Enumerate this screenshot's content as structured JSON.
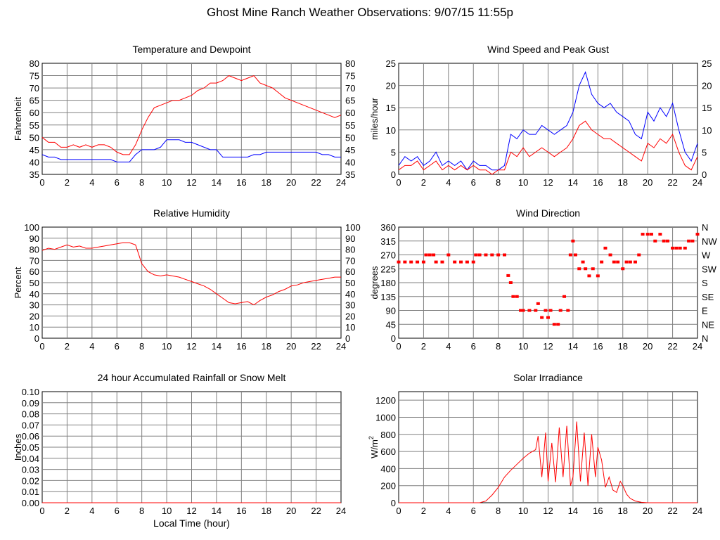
{
  "page": {
    "title": "Ghost Mine Ranch Weather Observations: 9/07/15 11:55p"
  },
  "chart_data": [
    {
      "id": "temp",
      "type": "line",
      "title": "Temperature and Dewpoint",
      "xlabel": "",
      "ylabel": "Fahrenheit",
      "xlim": [
        0,
        24
      ],
      "ylim": [
        35,
        80
      ],
      "x_ticks": [
        "0",
        "2",
        "4",
        "6",
        "8",
        "10",
        "12",
        "14",
        "16",
        "18",
        "20",
        "22",
        "24"
      ],
      "y_ticks": [
        "35",
        "40",
        "45",
        "50",
        "55",
        "60",
        "65",
        "70",
        "75",
        "80"
      ],
      "right_ticks": [
        "35",
        "40",
        "45",
        "50",
        "55",
        "60",
        "65",
        "70",
        "75",
        "80"
      ],
      "grid": true,
      "series": [
        {
          "color": "#ff0000",
          "x": [
            0,
            0.5,
            1,
            1.5,
            2,
            2.5,
            3,
            3.5,
            4,
            4.5,
            5,
            5.5,
            6,
            6.5,
            7,
            7.5,
            8,
            8.5,
            9,
            9.5,
            10,
            10.5,
            11,
            11.5,
            12,
            12.5,
            13,
            13.5,
            14,
            14.5,
            15,
            15.5,
            16,
            16.5,
            17,
            17.5,
            18,
            18.5,
            19,
            19.5,
            20,
            20.5,
            21,
            21.5,
            22,
            22.5,
            23,
            23.5,
            24
          ],
          "y": [
            50,
            48,
            48,
            46,
            46,
            47,
            46,
            47,
            46,
            47,
            47,
            46,
            44,
            43,
            43,
            47,
            53,
            58,
            62,
            63,
            64,
            65,
            65,
            66,
            67,
            69,
            70,
            72,
            72,
            73,
            75,
            74,
            73,
            74,
            75,
            72,
            71,
            70,
            68,
            66,
            65,
            64,
            63,
            62,
            61,
            60,
            59,
            58,
            59
          ]
        },
        {
          "color": "#0000ff",
          "x": [
            0,
            0.5,
            1,
            1.5,
            2,
            2.5,
            3,
            3.5,
            4,
            4.5,
            5,
            5.5,
            6,
            6.5,
            7,
            7.5,
            8,
            8.5,
            9,
            9.5,
            10,
            10.5,
            11,
            11.5,
            12,
            12.5,
            13,
            13.5,
            14,
            14.5,
            15,
            15.5,
            16,
            16.5,
            17,
            17.5,
            18,
            18.5,
            19,
            19.5,
            20,
            20.5,
            21,
            21.5,
            22,
            22.5,
            23,
            23.5,
            24
          ],
          "y": [
            43,
            42,
            42,
            41,
            41,
            41,
            41,
            41,
            41,
            41,
            41,
            41,
            40,
            40,
            40,
            43,
            45,
            45,
            45,
            46,
            49,
            49,
            49,
            48,
            48,
            47,
            46,
            45,
            45,
            42,
            42,
            42,
            42,
            42,
            43,
            43,
            44,
            44,
            44,
            44,
            44,
            44,
            44,
            44,
            44,
            43,
            43,
            42,
            42
          ]
        }
      ]
    },
    {
      "id": "wind",
      "type": "line",
      "title": "Wind Speed and Peak Gust",
      "xlabel": "",
      "ylabel": "miles/hour",
      "xlim": [
        0,
        24
      ],
      "ylim": [
        0,
        25
      ],
      "x_ticks": [
        "0",
        "2",
        "4",
        "6",
        "8",
        "10",
        "12",
        "14",
        "16",
        "18",
        "20",
        "22",
        "24"
      ],
      "y_ticks": [
        "0",
        "5",
        "10",
        "15",
        "20",
        "25"
      ],
      "right_ticks": [
        "0",
        "5",
        "10",
        "15",
        "20",
        "25"
      ],
      "grid": true,
      "series": [
        {
          "color": "#0000ff",
          "x": [
            0,
            0.5,
            1,
            1.5,
            2,
            2.5,
            3,
            3.5,
            4,
            4.5,
            5,
            5.5,
            6,
            6.5,
            7,
            7.5,
            8,
            8.5,
            9,
            9.5,
            10,
            10.5,
            11,
            11.5,
            12,
            12.5,
            13,
            13.5,
            14,
            14.5,
            15,
            15.5,
            16,
            16.5,
            17,
            17.5,
            18,
            18.5,
            19,
            19.5,
            20,
            20.5,
            21,
            21.5,
            22,
            22.5,
            23,
            23.5,
            24
          ],
          "y": [
            2,
            4,
            3,
            4,
            2,
            3,
            5,
            2,
            3,
            2,
            3,
            1,
            3,
            2,
            2,
            1,
            1,
            2,
            9,
            8,
            10,
            9,
            9,
            11,
            10,
            9,
            10,
            11,
            14,
            20,
            23,
            18,
            16,
            15,
            16,
            14,
            13,
            12,
            9,
            8,
            14,
            12,
            15,
            13,
            16,
            10,
            5,
            3,
            7
          ]
        },
        {
          "color": "#ff0000",
          "x": [
            0,
            0.5,
            1,
            1.5,
            2,
            2.5,
            3,
            3.5,
            4,
            4.5,
            5,
            5.5,
            6,
            6.5,
            7,
            7.5,
            8,
            8.5,
            9,
            9.5,
            10,
            10.5,
            11,
            11.5,
            12,
            12.5,
            13,
            13.5,
            14,
            14.5,
            15,
            15.5,
            16,
            16.5,
            17,
            17.5,
            18,
            18.5,
            19,
            19.5,
            20,
            20.5,
            21,
            21.5,
            22,
            22.5,
            23,
            23.5,
            24
          ],
          "y": [
            1,
            2,
            2,
            3,
            1,
            2,
            3,
            1,
            2,
            1,
            2,
            1,
            2,
            1,
            1,
            0,
            1,
            1,
            5,
            4,
            6,
            4,
            5,
            6,
            5,
            4,
            5,
            6,
            8,
            11,
            12,
            10,
            9,
            8,
            8,
            7,
            6,
            5,
            4,
            3,
            7,
            6,
            8,
            7,
            9,
            5,
            2,
            1,
            4
          ]
        }
      ]
    },
    {
      "id": "rh",
      "type": "line",
      "title": "Relative Humidity",
      "xlabel": "",
      "ylabel": "Percent",
      "xlim": [
        0,
        24
      ],
      "ylim": [
        0,
        100
      ],
      "x_ticks": [
        "0",
        "2",
        "4",
        "6",
        "8",
        "10",
        "12",
        "14",
        "16",
        "18",
        "20",
        "22",
        "24"
      ],
      "y_ticks": [
        "0",
        "10",
        "20",
        "30",
        "40",
        "50",
        "60",
        "70",
        "80",
        "90",
        "100"
      ],
      "right_ticks": [
        "0",
        "10",
        "20",
        "30",
        "40",
        "50",
        "60",
        "70",
        "80",
        "90",
        "100"
      ],
      "grid": true,
      "series": [
        {
          "color": "#ff0000",
          "x": [
            0,
            0.5,
            1,
            1.5,
            2,
            2.5,
            3,
            3.5,
            4,
            4.5,
            5,
            5.5,
            6,
            6.5,
            7,
            7.5,
            8,
            8.5,
            9,
            9.5,
            10,
            10.5,
            11,
            11.5,
            12,
            12.5,
            13,
            13.5,
            14,
            14.5,
            15,
            15.5,
            16,
            16.5,
            17,
            17.5,
            18,
            18.5,
            19,
            19.5,
            20,
            20.5,
            21,
            21.5,
            22,
            22.5,
            23,
            23.5,
            24
          ],
          "y": [
            79,
            81,
            80,
            82,
            84,
            82,
            83,
            81,
            81,
            82,
            83,
            84,
            85,
            86,
            86,
            84,
            67,
            60,
            57,
            56,
            57,
            56,
            55,
            53,
            51,
            49,
            47,
            44,
            40,
            36,
            32,
            31,
            32,
            33,
            30,
            34,
            37,
            39,
            42,
            44,
            47,
            48,
            50,
            51,
            52,
            53,
            54,
            55,
            55
          ]
        }
      ]
    },
    {
      "id": "winddir",
      "type": "scatter",
      "title": "Wind Direction",
      "xlabel": "",
      "ylabel": "degrees",
      "xlim": [
        0,
        24
      ],
      "ylim": [
        0,
        360
      ],
      "x_ticks": [
        "0",
        "2",
        "4",
        "6",
        "8",
        "10",
        "12",
        "14",
        "16",
        "18",
        "20",
        "22",
        "24"
      ],
      "y_ticks": [
        "0",
        "45",
        "90",
        "135",
        "180",
        "225",
        "270",
        "315",
        "360"
      ],
      "right_ticks": [
        "N",
        "NE",
        "E",
        "SE",
        "S",
        "SW",
        "W",
        "NW",
        "N"
      ],
      "grid": true,
      "series": [
        {
          "color": "#ff0000",
          "x": [
            0,
            0.5,
            1,
            1.5,
            2,
            2.2,
            2.5,
            2.8,
            3,
            3.5,
            4,
            4.5,
            5,
            5.5,
            6,
            6.2,
            6.5,
            7,
            7.5,
            8,
            8.5,
            8.8,
            9,
            9.2,
            9.5,
            9.8,
            10,
            10.5,
            11,
            11.2,
            11.5,
            11.8,
            12,
            12.2,
            12.5,
            12.8,
            13,
            13.3,
            13.6,
            13.8,
            14,
            14.2,
            14.5,
            14.8,
            15,
            15.3,
            15.6,
            16,
            16.3,
            16.6,
            17,
            17.3,
            17.6,
            18,
            18.3,
            18.6,
            19,
            19.3,
            19.6,
            20,
            20.3,
            20.6,
            21,
            21.3,
            21.6,
            22,
            22.3,
            22.6,
            23,
            23.3,
            23.6,
            24
          ],
          "y": [
            247,
            247,
            247,
            247,
            247,
            270,
            270,
            270,
            247,
            247,
            270,
            247,
            247,
            247,
            247,
            270,
            270,
            270,
            270,
            270,
            270,
            203,
            180,
            135,
            135,
            90,
            90,
            90,
            90,
            112,
            67,
            90,
            67,
            90,
            45,
            45,
            90,
            135,
            90,
            270,
            315,
            270,
            225,
            247,
            225,
            202,
            225,
            202,
            247,
            292,
            270,
            247,
            247,
            225,
            247,
            247,
            247,
            270,
            337,
            337,
            337,
            315,
            337,
            315,
            315,
            292,
            292,
            292,
            292,
            315,
            315,
            337
          ]
        }
      ]
    },
    {
      "id": "rain",
      "type": "line",
      "title": "24 hour Accumulated Rainfall or Snow Melt",
      "xlabel": "Local Time (hour)",
      "ylabel": "Inches",
      "xlim": [
        0,
        24
      ],
      "ylim": [
        0,
        0.1
      ],
      "x_ticks": [
        "0",
        "2",
        "4",
        "6",
        "8",
        "10",
        "12",
        "14",
        "16",
        "18",
        "20",
        "22",
        "24"
      ],
      "y_ticks": [
        "0.00",
        "0.01",
        "0.02",
        "0.03",
        "0.04",
        "0.05",
        "0.06",
        "0.07",
        "0.08",
        "0.09",
        "0.10"
      ],
      "right_ticks": [],
      "grid": true,
      "series": [
        {
          "color": "#ff0000",
          "x": [
            0,
            24
          ],
          "y": [
            0,
            0
          ]
        }
      ]
    },
    {
      "id": "solar",
      "type": "line",
      "title": "Solar Irradiance",
      "xlabel": "",
      "ylabel": "W/m",
      "ylabel_sup": "2",
      "xlim": [
        0,
        24
      ],
      "ylim": [
        0,
        1300
      ],
      "x_ticks": [
        "0",
        "2",
        "4",
        "6",
        "8",
        "10",
        "12",
        "14",
        "16",
        "18",
        "20",
        "22",
        "24"
      ],
      "y_ticks": [
        "0",
        "200",
        "400",
        "600",
        "800",
        "1000",
        "1200"
      ],
      "right_ticks": [],
      "grid": true,
      "series": [
        {
          "color": "#ff0000",
          "x": [
            0,
            6.5,
            7,
            7.5,
            8,
            8.5,
            9,
            9.5,
            10,
            10.5,
            11,
            11.2,
            11.5,
            11.8,
            12,
            12.3,
            12.6,
            12.9,
            13.2,
            13.5,
            13.8,
            14,
            14.3,
            14.6,
            14.9,
            15.2,
            15.5,
            15.8,
            16,
            16.3,
            16.6,
            16.9,
            17.2,
            17.5,
            17.8,
            18,
            18.3,
            18.6,
            19,
            19.5,
            20,
            24
          ],
          "y": [
            0,
            0,
            20,
            90,
            180,
            300,
            380,
            450,
            520,
            580,
            620,
            780,
            300,
            820,
            250,
            700,
            240,
            880,
            300,
            900,
            200,
            300,
            950,
            250,
            820,
            200,
            800,
            300,
            650,
            500,
            180,
            300,
            150,
            120,
            250,
            200,
            100,
            50,
            20,
            5,
            0,
            0
          ]
        }
      ]
    }
  ]
}
